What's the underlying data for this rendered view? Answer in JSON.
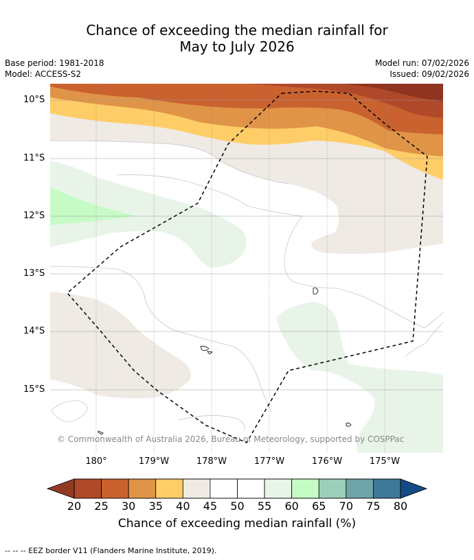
{
  "title": {
    "line1": "Chance of exceeding the median rainfall for",
    "line2": "May to July 2026"
  },
  "meta": {
    "base_period": "Base period: 1981-2018",
    "model": "Model: ACCESS-S2",
    "model_run": "Model run: 07/02/2026",
    "issued": "Issued: 09/02/2026"
  },
  "map": {
    "lat_labels": [
      "10°S",
      "11°S",
      "12°S",
      "13°S",
      "14°S",
      "15°S"
    ],
    "lon_labels": [
      "180°",
      "179°W",
      "178°W",
      "177°W",
      "176°W",
      "175°W"
    ],
    "copyright": "© Commonwealth of Australia 2026, Bureau of Meteorology, supported by COSPPac",
    "colors": {
      "c20_25": "#b0492a",
      "c25_30": "#c9622f",
      "c30_35": "#e09448",
      "c35_40": "#fecd68",
      "c40_45": "#efeae4",
      "c45_55": "#ffffff",
      "c55_60": "#e9f4e9",
      "c60_65": "#c6fbc6",
      "c15_20": "#8e3420"
    }
  },
  "colorbar": {
    "labels": [
      "20",
      "25",
      "30",
      "35",
      "40",
      "45",
      "50",
      "55",
      "60",
      "65",
      "70",
      "75",
      "80"
    ],
    "colors": [
      "#b0492a",
      "#c9622f",
      "#e09448",
      "#fecd68",
      "#efeae4",
      "#ffffff",
      "#ffffff",
      "#e9f4e9",
      "#c6fbc6",
      "#9ccfba",
      "#6fa4a8",
      "#3f7898"
    ],
    "low_color": "#913a22",
    "high_color": "#124b86",
    "title": "Chance of exceeding median rainfall (%)"
  },
  "footnote": "--  --  -- EEZ border V11 (Flanders Marine Institute, 2019)."
}
